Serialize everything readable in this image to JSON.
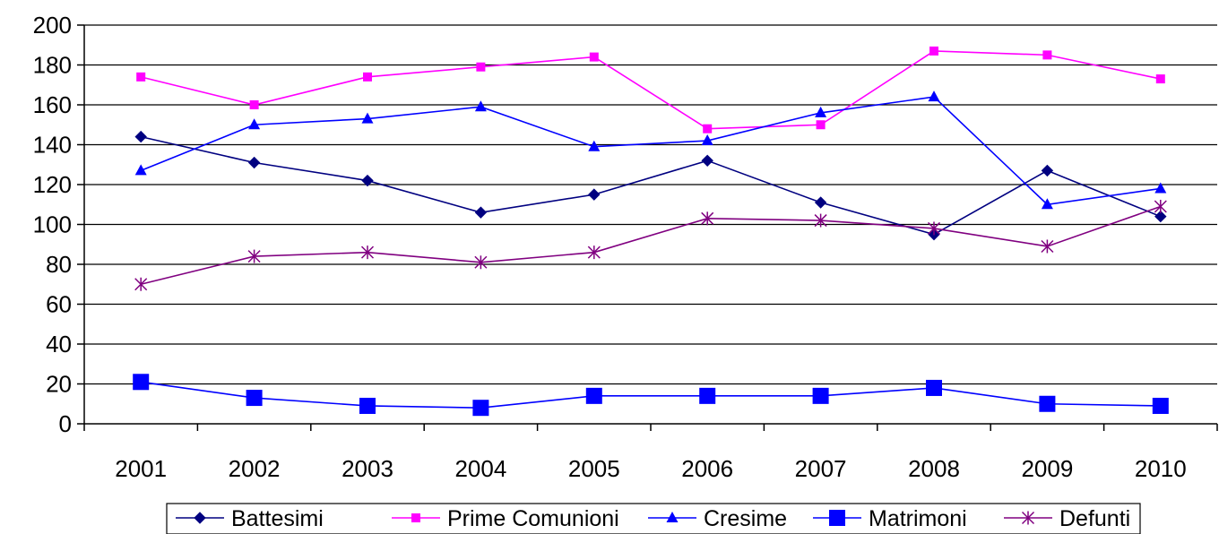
{
  "chart_data": {
    "type": "line",
    "title": "",
    "xlabel": "",
    "ylabel": "",
    "categories": [
      "2001",
      "2002",
      "2003",
      "2004",
      "2005",
      "2006",
      "2007",
      "2008",
      "2009",
      "2010"
    ],
    "ylim": [
      0,
      200
    ],
    "yticks": [
      "0",
      "20",
      "40",
      "60",
      "80",
      "100",
      "120",
      "140",
      "160",
      "180",
      "200"
    ],
    "grid": true,
    "legend_position": "bottom",
    "series": [
      {
        "name": "Battesimi",
        "marker": "diamond",
        "color": "#000080",
        "values": [
          144,
          131,
          122,
          106,
          115,
          132,
          111,
          95,
          127,
          104
        ]
      },
      {
        "name": "Prime Comunioni",
        "marker": "square",
        "color": "#FF00FF",
        "values": [
          174,
          160,
          174,
          179,
          184,
          148,
          150,
          187,
          185,
          173
        ]
      },
      {
        "name": "Cresime",
        "marker": "triangle",
        "color": "#0000FF",
        "values": [
          127,
          150,
          153,
          159,
          139,
          142,
          156,
          164,
          110,
          118
        ]
      },
      {
        "name": "Matrimoni",
        "marker": "big-square",
        "color": "#0000FF",
        "values": [
          21,
          13,
          9,
          8,
          14,
          14,
          14,
          18,
          10,
          9
        ]
      },
      {
        "name": "Defunti",
        "marker": "star",
        "color": "#800080",
        "values": [
          70,
          84,
          86,
          81,
          86,
          103,
          102,
          98,
          89,
          109
        ]
      }
    ]
  }
}
